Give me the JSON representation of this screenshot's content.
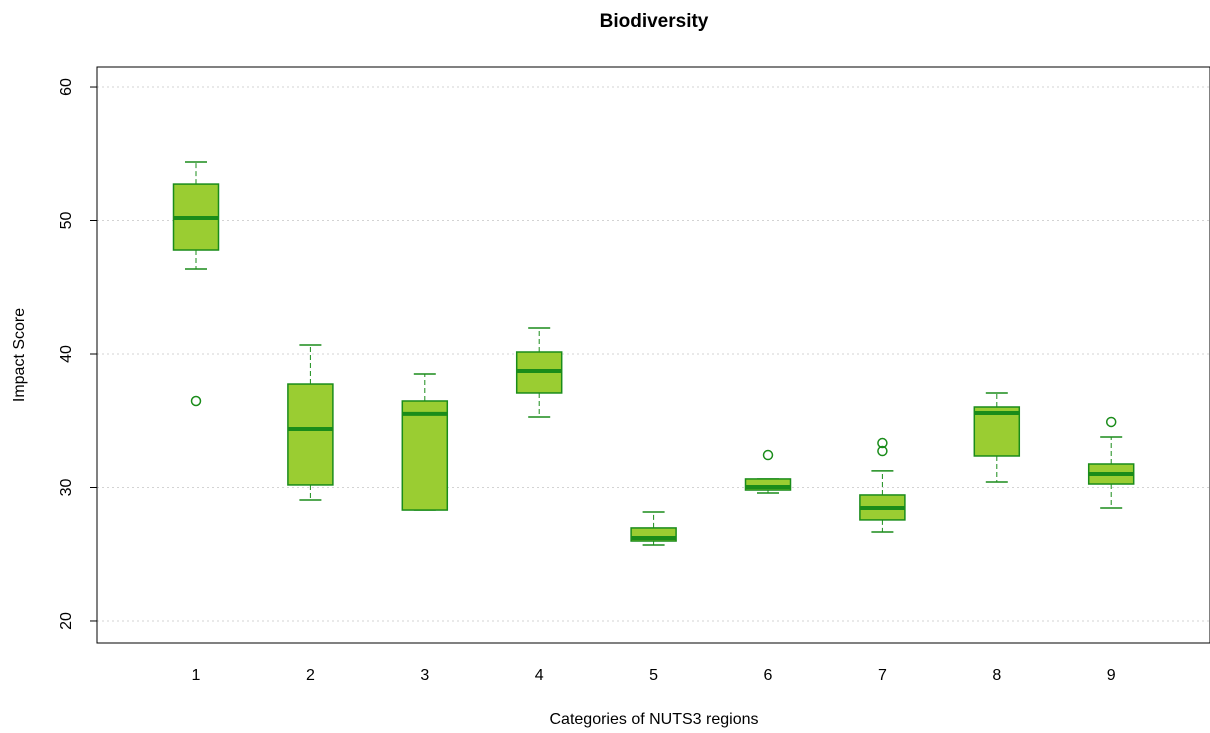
{
  "chart_data": {
    "type": "box",
    "title": "Biodiversity",
    "x_label": "Categories of NUTS3 regions",
    "y_label": "Impact Score",
    "categories": [
      "1",
      "2",
      "3",
      "4",
      "5",
      "6",
      "7",
      "8",
      "9"
    ],
    "boxes": [
      {
        "whisker_low": 46.37,
        "q1": 47.79,
        "median": 50.19,
        "q3": 52.73,
        "whisker_high": 54.38,
        "outliers": [
          36.48
        ]
      },
      {
        "whisker_low": 29.06,
        "q1": 30.19,
        "median": 34.38,
        "q3": 37.75,
        "whisker_high": 40.67
      },
      {
        "whisker_low": 28.31,
        "q1": 28.31,
        "median": 35.51,
        "q3": 36.48,
        "whisker_high": 38.5
      },
      {
        "whisker_low": 35.28,
        "q1": 37.08,
        "median": 38.73,
        "q3": 40.15,
        "whisker_high": 41.95
      },
      {
        "whisker_low": 25.69,
        "q1": 25.99,
        "median": 26.22,
        "q3": 26.97,
        "whisker_high": 28.16
      },
      {
        "whisker_low": 29.59,
        "q1": 29.81,
        "median": 30.04,
        "q3": 30.64,
        "whisker_high": 30.64,
        "outliers": [
          32.43
        ]
      },
      {
        "whisker_low": 26.67,
        "q1": 27.57,
        "median": 28.46,
        "q3": 29.44,
        "whisker_high": 31.24,
        "outliers": [
          33.33,
          32.73
        ]
      },
      {
        "whisker_low": 30.41,
        "q1": 32.36,
        "median": 35.58,
        "q3": 36.03,
        "whisker_high": 37.08
      },
      {
        "whisker_low": 28.46,
        "q1": 30.26,
        "median": 31.01,
        "q3": 31.76,
        "whisker_high": 33.78,
        "outliers": [
          34.91
        ]
      }
    ],
    "fill_color": "#9acd32",
    "color": "#1a8c1a",
    "ylim": [
      18.35,
      61.5
    ],
    "yticks": [
      20,
      30,
      40,
      50,
      60
    ],
    "grid": true
  }
}
